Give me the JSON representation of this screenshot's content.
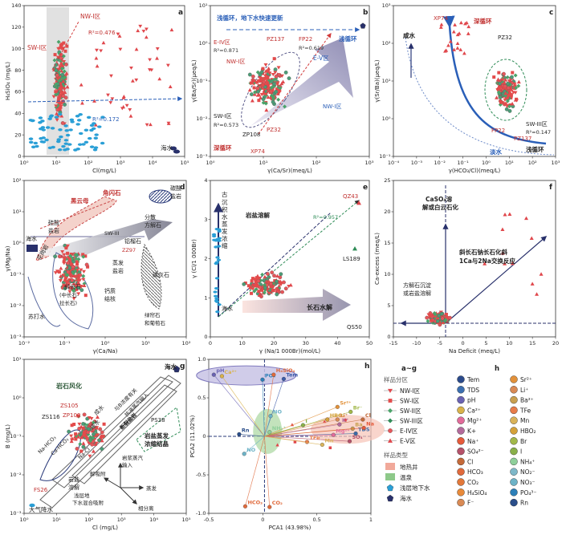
{
  "colors": {
    "nw": "#e0474c",
    "sw1": "#e34b4b",
    "sw2": "#4aa36a",
    "sw3": "#2f8c57",
    "ev": "#e5565a",
    "geo": "#f1a99a",
    "hot": "#8ec98a",
    "shallow": "#2a9fd6",
    "sea": "#28306b",
    "blue_arrow": "#2a5fb8",
    "grey_band": "#d9d9d9"
  },
  "chart_data": [
    {
      "id": "a",
      "type": "scatter",
      "xlabel": "Cl(mg/L)",
      "ylabel": "H₄SiO₄ (mg/L)",
      "xscale": "log",
      "xticks": [
        "10⁰",
        "10¹",
        "10²",
        "10³",
        "10⁴",
        "10⁵"
      ],
      "yticks": [
        "0",
        "20",
        "40",
        "60",
        "80",
        "100",
        "120",
        "140"
      ],
      "annotations": [
        "NW-I区",
        "SW-I区",
        "R²=0.476",
        "R²=0.172",
        "海水"
      ]
    },
    {
      "id": "b",
      "type": "scatter",
      "xlabel": "γ(Ca/Sr)(meq/L)",
      "ylabel": "γ(Ba/Sr)(μeq/L)",
      "xscale": "log",
      "yscale": "log",
      "xticks": [
        "10⁰",
        "10¹",
        "10²",
        "10³"
      ],
      "yticks": [
        "10⁻³",
        "10⁻²",
        "10⁻¹",
        "10⁰",
        "10¹"
      ],
      "annotations": [
        "浅循环，地下水快速更新",
        "浅循环",
        "E-IV区",
        "R²=0.871",
        "NW-I区",
        "PZ137",
        "FP22",
        "R²=0.619",
        "E-V区",
        "NW-I区",
        "SW-I区",
        "R²=0.573",
        "PZ32",
        "ZP108",
        "深循环",
        "XP74"
      ]
    },
    {
      "id": "c",
      "type": "scatter",
      "xlabel": "γ(HCO₃/Cl)(meq/L)",
      "ylabel": "γ(Sr/Ba)(μeq/L)",
      "xscale": "log",
      "yscale": "log",
      "xticks": [
        "10⁻⁴",
        "10⁻³",
        "10⁻²",
        "10⁻¹",
        "10⁰",
        "10¹",
        "10²",
        "10³"
      ],
      "yticks": [
        "10⁻¹",
        "10⁰",
        "10¹",
        "10²",
        "10³"
      ],
      "annotations": [
        "XP74",
        "深循环",
        "咸水",
        "PZ32",
        "SW-III区",
        "R²=0.147",
        "FP22",
        "PZ137",
        "淡水",
        "浅循环"
      ]
    },
    {
      "id": "d",
      "type": "scatter",
      "xlabel": "γ(Ca/Na)",
      "ylabel": "γ(Mg/Na)",
      "xscale": "log",
      "yscale": "log",
      "xticks": [
        "10⁻²",
        "10⁻¹",
        "10⁰",
        "10¹",
        "10²"
      ],
      "yticks": [
        "10⁻³",
        "10⁻²",
        "10⁻¹",
        "10⁰",
        "10¹",
        "10²"
      ],
      "annotations": [
        "角闪石",
        "黑云母",
        "碳酸盐岩",
        "硅酸盐岩",
        "SW-III",
        "分散方解石",
        "海水",
        "花岗岩",
        "铝榴石",
        "ZZ97",
        "蒸发盐岩",
        "磷灰石",
        "钙质结核",
        "斜长石(中长石-拉长石)",
        "绿帘石和葡萄石",
        "苏打水"
      ]
    },
    {
      "id": "e",
      "type": "scatter",
      "xlabel": "γ (Na/1 000Br)(mol/L)",
      "ylabel": "γ (Cl/1 000Br)",
      "xticks": [
        "0",
        "10",
        "20",
        "30",
        "40",
        "50"
      ],
      "yticks": [
        "0",
        "1",
        "2",
        "3",
        "4"
      ],
      "annotations": [
        "古沉积水蒸发浓缩",
        "岩盐溶解",
        "QZ43",
        "R²=0.957",
        "LS189",
        "长石水解",
        "QS50",
        "海水"
      ]
    },
    {
      "id": "f",
      "type": "scatter",
      "xlabel": "Na Deficit (meq/L)",
      "ylabel": "Ca-excess (meq/L)",
      "xticks": [
        "-15",
        "-10",
        "-5",
        "0",
        "5",
        "10",
        "15",
        "20"
      ],
      "yticks": [
        "0",
        "5",
        "10",
        "15",
        "20",
        "25"
      ],
      "annotations": [
        "CaSO₄溶解或白云石化",
        "斜长石钠长石化斜1Ca与2Na交换反应",
        "方解石沉淀或岩盐溶解"
      ]
    },
    {
      "id": "g",
      "type": "scatter",
      "xlabel": "Cl (mg/L)",
      "ylabel": "B (mg/L)",
      "xscale": "log",
      "yscale": "log",
      "xticks": [
        "10⁰",
        "10¹",
        "10²",
        "10³",
        "10⁴",
        "10⁵"
      ],
      "yticks": [
        "10⁻³",
        "10⁻²",
        "10⁻¹",
        "10⁰",
        "10¹"
      ],
      "annotations": [
        "海水",
        "岩石风化",
        "ZS105",
        "ZS116",
        "ZP100",
        "成水",
        "浅水",
        "与B浓度有关的开放相互",
        "热液蒸汽输入",
        "断裂盐岩",
        "PS38",
        "岩盐蒸发浓缩结晶",
        "Na-HCO₃",
        "Ca-HCO₃",
        "Na-Cl",
        "岩盐溶解",
        "FS26",
        "大气降水",
        "解吸附",
        "岩浆蒸汽输入",
        "蒸发",
        "浅层地下水混合吸附",
        "相分离"
      ]
    },
    {
      "id": "h",
      "type": "scatter",
      "xlabel": "PCA1 (43.98%)",
      "ylabel": "PCA2 (11.02%)",
      "xticks": [
        "-0.5",
        "0",
        "0.5",
        "1"
      ],
      "yticks": [
        "-1.0",
        "-0.5",
        "0",
        "0.5",
        "1.0"
      ],
      "loadings": [
        {
          "name": "pH",
          "x": -0.5,
          "y": 0.88,
          "color": "#6a63b3"
        },
        {
          "name": "Ca²⁺",
          "x": -0.42,
          "y": 0.86,
          "color": "#d9b24a"
        },
        {
          "name": "PO₄",
          "x": -0.02,
          "y": 0.81,
          "color": "#2c7fb8"
        },
        {
          "name": "H₄SiO₄",
          "x": 0.09,
          "y": 0.88,
          "color": "#e06a3c"
        },
        {
          "name": "Tem",
          "x": 0.19,
          "y": 0.82,
          "color": "#3b5aa8"
        },
        {
          "name": "Sr²⁺",
          "x": 0.72,
          "y": 0.42,
          "color": "#e2913a"
        },
        {
          "name": "Br⁻",
          "x": 0.85,
          "y": 0.35,
          "color": "#a2b84a"
        },
        {
          "name": "HBO₂",
          "x": 0.62,
          "y": 0.24,
          "color": "#d4a13a"
        },
        {
          "name": "Li⁺",
          "x": 0.72,
          "y": 0.24,
          "color": "#d98a55"
        },
        {
          "name": "Cl",
          "x": 0.97,
          "y": 0.24,
          "color": "#c46a3a"
        },
        {
          "name": "K⁺",
          "x": 0.74,
          "y": 0.17,
          "color": "#b36a9b"
        },
        {
          "name": "I",
          "x": 0.38,
          "y": 0.16,
          "color": "#8ab04a"
        },
        {
          "name": "Ba",
          "x": 0.87,
          "y": 0.11,
          "color": "#c9a050"
        },
        {
          "name": "TDS",
          "x": 0.9,
          "y": 0.04,
          "color": "#3a6aa8"
        },
        {
          "name": "Na",
          "x": 0.98,
          "y": 0.12,
          "color": "#e55a3a"
        },
        {
          "name": "Mg²⁺",
          "x": 0.68,
          "y": 0.02,
          "color": "#e26b9a"
        },
        {
          "name": "SO₄",
          "x": 0.84,
          "y": -0.07,
          "color": "#b5526a"
        },
        {
          "name": "TFe",
          "x": 0.42,
          "y": -0.08,
          "color": "#e87c4a"
        },
        {
          "name": "Mn",
          "x": 0.57,
          "y": -0.12,
          "color": "#d9b35a"
        },
        {
          "name": "NO",
          "x": 0.06,
          "y": 0.29,
          "color": "#6db3c7"
        },
        {
          "name": "NH₄⁺",
          "x": 0.05,
          "y": 0.06,
          "color": "#8fcf9a"
        },
        {
          "name": "Rn",
          "x": -0.25,
          "y": 0.03,
          "color": "#2a4e8a"
        },
        {
          "name": "NO",
          "x": -0.2,
          "y": -0.25,
          "color": "#6db3c7"
        },
        {
          "name": "HCO₃",
          "x": -0.19,
          "y": -1.0,
          "color": "#e06a3c"
        },
        {
          "name": "CO₂",
          "x": 0.05,
          "y": -1.01,
          "color": "#e06a3c"
        }
      ]
    }
  ],
  "legend": {
    "title_ag": "a~g",
    "title_h": "h",
    "zone_title": "样品分区",
    "zones": [
      "NW-I区",
      "SW-I区",
      "SW-II区",
      "SW-III区",
      "E-IV区",
      "E-V区"
    ],
    "type_title": "样品类型",
    "types": [
      "地热井",
      "温泉",
      "浅层地下水",
      "海水"
    ],
    "h_items": [
      "Tem",
      "TDS",
      "pH",
      "Ca²⁺",
      "Mg²⁺",
      "K+",
      "Na⁺",
      "SO₄²⁻",
      "Cl",
      "HCO₃",
      "CO₂",
      "H₄SiO₄",
      "F⁻",
      "Sr²⁺",
      "Li⁺",
      "Ba²⁺",
      "TFe",
      "Mn",
      "HBO₂",
      "Br",
      "I",
      "NH₄⁺",
      "NO₂⁻",
      "NO₃⁻",
      "PO₄³⁻",
      "Rn"
    ],
    "h_colors": [
      "#2b4a8b",
      "#3c6fb0",
      "#6a63b3",
      "#d9b24a",
      "#e26b9a",
      "#b36a9b",
      "#e55a3a",
      "#b5526a",
      "#c46a3a",
      "#e06a3c",
      "#e2783a",
      "#e88a3a",
      "#d98a55",
      "#e2913a",
      "#d98a55",
      "#c9a050",
      "#e87c4a",
      "#d9b35a",
      "#d4a13a",
      "#a2b84a",
      "#8ab04a",
      "#8fcf9a",
      "#7fb8c9",
      "#6db3c7",
      "#2c7fb8",
      "#2a4e8a"
    ]
  }
}
